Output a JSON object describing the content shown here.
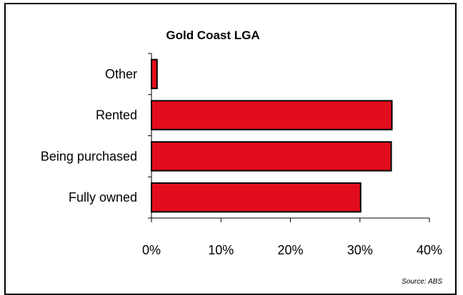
{
  "chart_data": {
    "type": "bar",
    "orientation": "horizontal",
    "title": "Gold Coast LGA",
    "categories": [
      "Other",
      "Rented",
      "Being purchased",
      "Fully owned"
    ],
    "values": [
      0.8,
      34.6,
      34.5,
      30.1
    ],
    "value_unit": "%",
    "xlim": [
      0,
      40
    ],
    "x_ticks": [
      "0%",
      "10%",
      "20%",
      "30%",
      "40%"
    ],
    "xlabel": "",
    "ylabel": "",
    "grid": false,
    "legend": "none",
    "bar_color": "#e30c1c",
    "bar_edge_color": "#000000",
    "source": "Source:  ABS"
  }
}
